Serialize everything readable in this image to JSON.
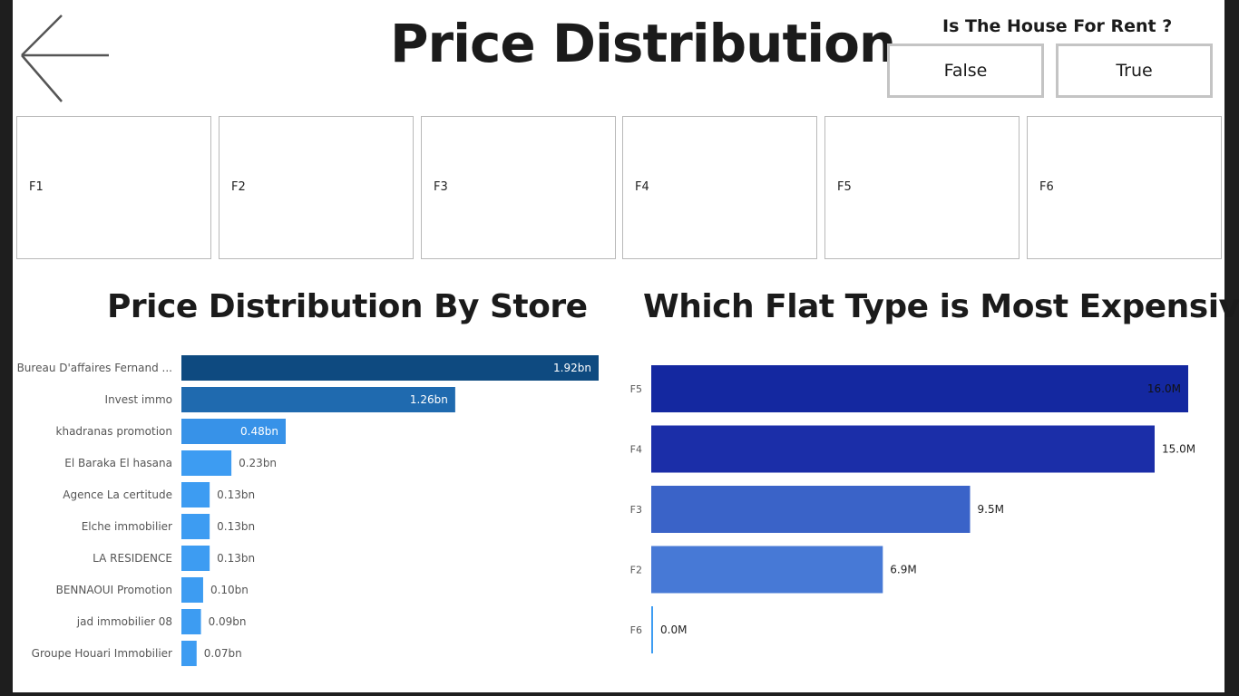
{
  "header": {
    "title": "Price Distribution",
    "back_icon": "arrow-left-icon"
  },
  "rent_filter": {
    "label": "Is The House For Rent ?",
    "options": [
      "False",
      "True"
    ]
  },
  "flat_tiles": [
    "F1",
    "F2",
    "F3",
    "F4",
    "F5",
    "F6"
  ],
  "chart_data": [
    {
      "type": "bar",
      "orientation": "horizontal",
      "title": "Price Distribution By Store",
      "categories": [
        "Bureau D'affaires Fernand ...",
        "Invest immo",
        "khadranas promotion",
        "El Baraka El hasana",
        "Agence La certitude",
        "Elche immobilier",
        "LA RESIDENCE",
        "BENNAOUI Promotion",
        "jad immobilier 08",
        "Groupe Houari Immobilier"
      ],
      "values": [
        1.92,
        1.26,
        0.48,
        0.23,
        0.13,
        0.13,
        0.13,
        0.1,
        0.09,
        0.07
      ],
      "data_labels": [
        "1.92bn",
        "1.26bn",
        "0.48bn",
        "0.23bn",
        "0.13bn",
        "0.13bn",
        "0.13bn",
        "0.10bn",
        "0.09bn",
        "0.07bn"
      ],
      "colors": [
        "#0e4a80",
        "#1f6aaf",
        "#3792e8",
        "#3d9cf2",
        "#3d9cf2",
        "#3d9cf2",
        "#3d9cf2",
        "#3d9cf2",
        "#3d9cf2",
        "#3d9cf2"
      ],
      "xlim": [
        0,
        1.92
      ]
    },
    {
      "type": "bar",
      "orientation": "horizontal",
      "title": "Which Flat Type is Most Expensive",
      "categories": [
        "F5",
        "F4",
        "F3",
        "F2",
        "F6"
      ],
      "values": [
        16.0,
        15.0,
        9.5,
        6.9,
        0.0
      ],
      "data_labels": [
        "16.0M",
        "15.0M",
        "9.5M",
        "6.9M",
        "0.0M"
      ],
      "colors": [
        "#1428a0",
        "#1b2ea8",
        "#3a63c8",
        "#4779d6",
        "#3d9cf2"
      ],
      "xlim": [
        0,
        16.0
      ]
    }
  ]
}
